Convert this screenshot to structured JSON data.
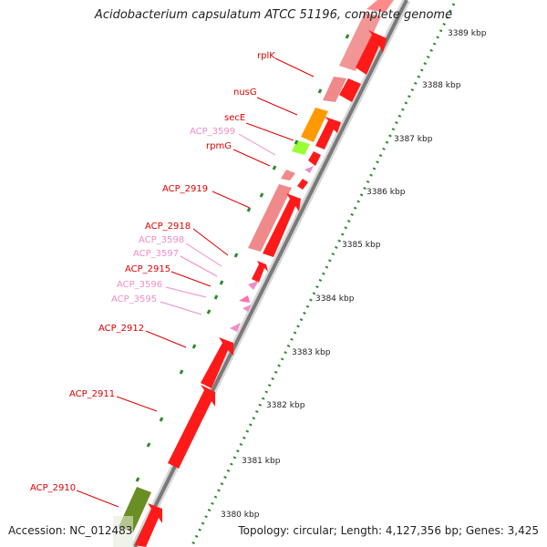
{
  "title": "Acidobacterium capsulatum ATCC 51196, complete genome",
  "footer": {
    "accession": "Accession: NC_012483",
    "topology": "Topology: circular; Length: 4,127,356 bp; Genes: 3,425"
  },
  "colors": {
    "cds": "#ff0000",
    "cds_light": "#f08a8a",
    "rrna_light": "#ffb6d0",
    "orange": "#ff9900",
    "lime": "#99ff33",
    "olive": "#6b8e23",
    "backbone": "#888888",
    "tick_green": "#2e8b2e",
    "label_red": "#dd0000",
    "label_pink": "#f08cc8"
  },
  "ticks": [
    "3389 kbp",
    "3388 kbp",
    "3387 kbp",
    "3386 kbp",
    "3385 kbp",
    "3384 kbp",
    "3383 kbp",
    "3382 kbp",
    "3381 kbp",
    "3380 kbp"
  ],
  "labels": [
    {
      "text": "rplK",
      "color": "red"
    },
    {
      "text": "nusG",
      "color": "red"
    },
    {
      "text": "secE",
      "color": "red"
    },
    {
      "text": "ACP_3599",
      "color": "pink"
    },
    {
      "text": "rpmG",
      "color": "red"
    },
    {
      "text": "ACP_2919",
      "color": "red"
    },
    {
      "text": "ACP_2918",
      "color": "red"
    },
    {
      "text": "ACP_3598",
      "color": "pink"
    },
    {
      "text": "ACP_3597",
      "color": "pink"
    },
    {
      "text": "ACP_2915",
      "color": "red"
    },
    {
      "text": "ACP_3596",
      "color": "pink"
    },
    {
      "text": "ACP_3595",
      "color": "pink"
    },
    {
      "text": "ACP_2912",
      "color": "red"
    },
    {
      "text": "ACP_2911",
      "color": "red"
    },
    {
      "text": "ACP_2910",
      "color": "red"
    }
  ]
}
